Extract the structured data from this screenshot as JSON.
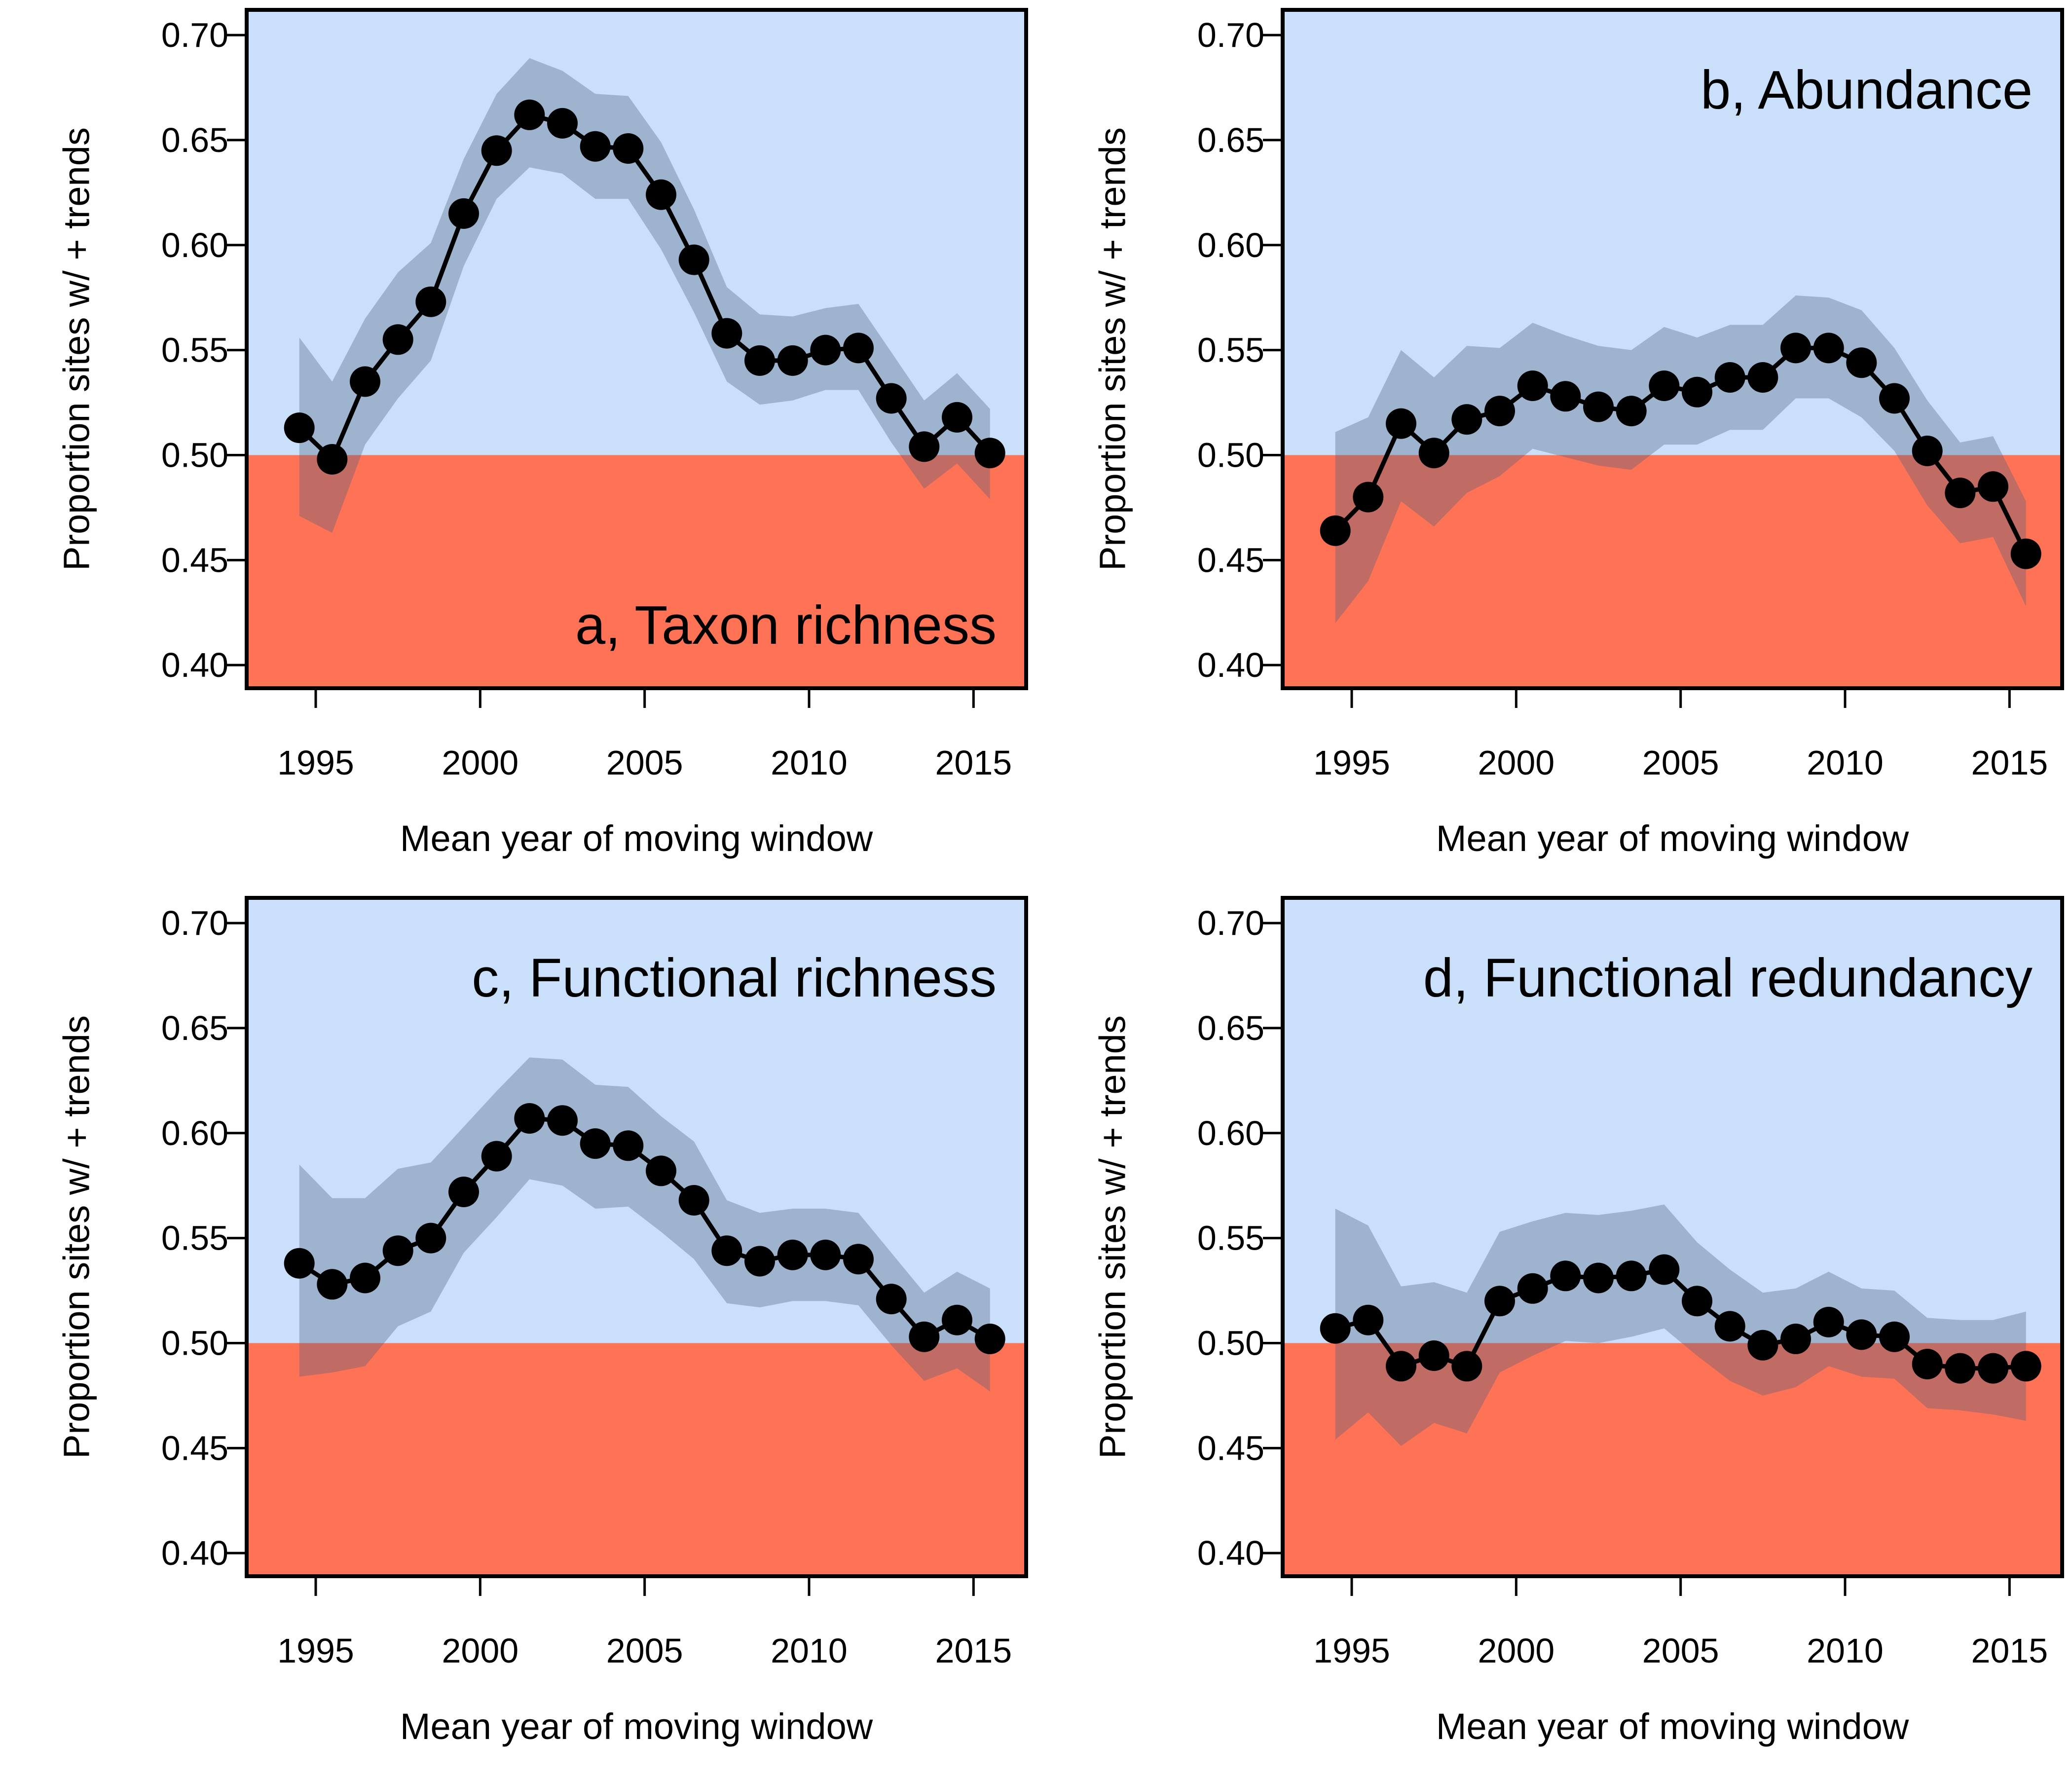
{
  "colors": {
    "positive_zone": "#cae0fa",
    "negative_zone": "#fe7256",
    "ci_band": "#4d5f7a",
    "line": "#000000"
  },
  "chart_data": [
    {
      "type": "line",
      "title": "a, Taxon richness",
      "xlabel": "Mean year of moving window",
      "ylabel": "Proportion sites w/ + trends",
      "title_position": "bottom-right",
      "xlim": [
        1992.9,
        2016.6
      ],
      "ylim": [
        0.389,
        0.712
      ],
      "xticks": [
        1995,
        2000,
        2005,
        2010,
        2015
      ],
      "yticks": [
        "0.40",
        "0.45",
        "0.50",
        "0.55",
        "0.60",
        "0.65",
        "0.70"
      ],
      "threshold": 0.5,
      "x": [
        1994.5,
        1995.5,
        1996.5,
        1997.5,
        1998.5,
        1999.5,
        2000.5,
        2001.5,
        2002.5,
        2003.5,
        2004.5,
        2005.5,
        2006.5,
        2007.5,
        2008.5,
        2009.5,
        2010.5,
        2011.5,
        2012.5,
        2013.5,
        2014.5,
        2015.5
      ],
      "y": [
        0.513,
        0.498,
        0.535,
        0.555,
        0.573,
        0.615,
        0.645,
        0.662,
        0.658,
        0.647,
        0.646,
        0.624,
        0.593,
        0.558,
        0.545,
        0.545,
        0.55,
        0.551,
        0.527,
        0.504,
        0.518,
        0.501
      ],
      "lower": [
        0.471,
        0.463,
        0.505,
        0.527,
        0.545,
        0.59,
        0.622,
        0.637,
        0.634,
        0.622,
        0.622,
        0.598,
        0.568,
        0.535,
        0.524,
        0.526,
        0.531,
        0.531,
        0.506,
        0.484,
        0.496,
        0.479
      ],
      "upper": [
        0.556,
        0.535,
        0.565,
        0.587,
        0.601,
        0.641,
        0.672,
        0.689,
        0.683,
        0.672,
        0.671,
        0.649,
        0.617,
        0.58,
        0.567,
        0.566,
        0.57,
        0.572,
        0.549,
        0.526,
        0.539,
        0.522
      ]
    },
    {
      "type": "line",
      "title": "b, Abundance",
      "xlabel": "Mean year of moving window",
      "ylabel": "Proportion sites w/ + trends",
      "title_position": "top-right",
      "xlim": [
        1992.9,
        2016.6
      ],
      "ylim": [
        0.389,
        0.712
      ],
      "xticks": [
        1995,
        2000,
        2005,
        2010,
        2015
      ],
      "yticks": [
        "0.40",
        "0.45",
        "0.50",
        "0.55",
        "0.60",
        "0.65",
        "0.70"
      ],
      "threshold": 0.5,
      "x": [
        1994.5,
        1995.5,
        1996.5,
        1997.5,
        1998.5,
        1999.5,
        2000.5,
        2001.5,
        2002.5,
        2003.5,
        2004.5,
        2005.5,
        2006.5,
        2007.5,
        2008.5,
        2009.5,
        2010.5,
        2011.5,
        2012.5,
        2013.5,
        2014.5,
        2015.5
      ],
      "y": [
        0.464,
        0.48,
        0.515,
        0.501,
        0.517,
        0.521,
        0.533,
        0.528,
        0.523,
        0.521,
        0.533,
        0.53,
        0.537,
        0.537,
        0.551,
        0.551,
        0.544,
        0.527,
        0.502,
        0.482,
        0.485,
        0.453
      ],
      "lower": [
        0.42,
        0.44,
        0.478,
        0.466,
        0.482,
        0.49,
        0.503,
        0.499,
        0.495,
        0.493,
        0.505,
        0.505,
        0.512,
        0.512,
        0.527,
        0.527,
        0.518,
        0.502,
        0.476,
        0.458,
        0.461,
        0.428
      ],
      "upper": [
        0.511,
        0.518,
        0.55,
        0.537,
        0.552,
        0.551,
        0.563,
        0.557,
        0.552,
        0.55,
        0.561,
        0.556,
        0.562,
        0.562,
        0.576,
        0.575,
        0.569,
        0.551,
        0.526,
        0.506,
        0.509,
        0.478
      ]
    },
    {
      "type": "line",
      "title": "c, Functional richness",
      "xlabel": "Mean year of moving window",
      "ylabel": "Proportion sites w/ + trends",
      "title_position": "top-right",
      "xlim": [
        1992.9,
        2016.6
      ],
      "ylim": [
        0.389,
        0.712
      ],
      "xticks": [
        1995,
        2000,
        2005,
        2010,
        2015
      ],
      "yticks": [
        "0.40",
        "0.45",
        "0.50",
        "0.55",
        "0.60",
        "0.65",
        "0.70"
      ],
      "threshold": 0.5,
      "x": [
        1994.5,
        1995.5,
        1996.5,
        1997.5,
        1998.5,
        1999.5,
        2000.5,
        2001.5,
        2002.5,
        2003.5,
        2004.5,
        2005.5,
        2006.5,
        2007.5,
        2008.5,
        2009.5,
        2010.5,
        2011.5,
        2012.5,
        2013.5,
        2014.5,
        2015.5
      ],
      "y": [
        0.538,
        0.528,
        0.531,
        0.544,
        0.55,
        0.572,
        0.589,
        0.607,
        0.606,
        0.595,
        0.594,
        0.582,
        0.568,
        0.544,
        0.539,
        0.542,
        0.542,
        0.54,
        0.521,
        0.503,
        0.511,
        0.502
      ],
      "lower": [
        0.484,
        0.486,
        0.489,
        0.508,
        0.515,
        0.543,
        0.56,
        0.578,
        0.575,
        0.564,
        0.565,
        0.553,
        0.54,
        0.519,
        0.517,
        0.52,
        0.52,
        0.518,
        0.499,
        0.482,
        0.488,
        0.477
      ],
      "upper": [
        0.585,
        0.569,
        0.569,
        0.583,
        0.586,
        0.603,
        0.62,
        0.636,
        0.635,
        0.623,
        0.622,
        0.608,
        0.596,
        0.568,
        0.562,
        0.564,
        0.564,
        0.562,
        0.543,
        0.524,
        0.534,
        0.526
      ]
    },
    {
      "type": "line",
      "title": "d, Functional redundancy",
      "xlabel": "Mean year of moving window",
      "ylabel": "Proportion sites w/ + trends",
      "title_position": "top-right",
      "xlim": [
        1992.9,
        2016.6
      ],
      "ylim": [
        0.389,
        0.712
      ],
      "xticks": [
        1995,
        2000,
        2005,
        2010,
        2015
      ],
      "yticks": [
        "0.40",
        "0.45",
        "0.50",
        "0.55",
        "0.60",
        "0.65",
        "0.70"
      ],
      "threshold": 0.5,
      "x": [
        1994.5,
        1995.5,
        1996.5,
        1997.5,
        1998.5,
        1999.5,
        2000.5,
        2001.5,
        2002.5,
        2003.5,
        2004.5,
        2005.5,
        2006.5,
        2007.5,
        2008.5,
        2009.5,
        2010.5,
        2011.5,
        2012.5,
        2013.5,
        2014.5,
        2015.5
      ],
      "y": [
        0.507,
        0.511,
        0.489,
        0.494,
        0.489,
        0.52,
        0.526,
        0.532,
        0.531,
        0.532,
        0.535,
        0.52,
        0.508,
        0.499,
        0.502,
        0.51,
        0.504,
        0.503,
        0.49,
        0.488,
        0.488,
        0.489
      ],
      "lower": [
        0.454,
        0.467,
        0.451,
        0.462,
        0.457,
        0.486,
        0.494,
        0.501,
        0.5,
        0.503,
        0.507,
        0.494,
        0.482,
        0.475,
        0.479,
        0.489,
        0.484,
        0.483,
        0.469,
        0.468,
        0.466,
        0.463
      ],
      "upper": [
        0.564,
        0.556,
        0.527,
        0.529,
        0.524,
        0.553,
        0.558,
        0.562,
        0.561,
        0.563,
        0.566,
        0.548,
        0.535,
        0.524,
        0.526,
        0.534,
        0.526,
        0.525,
        0.512,
        0.511,
        0.511,
        0.515
      ]
    }
  ]
}
